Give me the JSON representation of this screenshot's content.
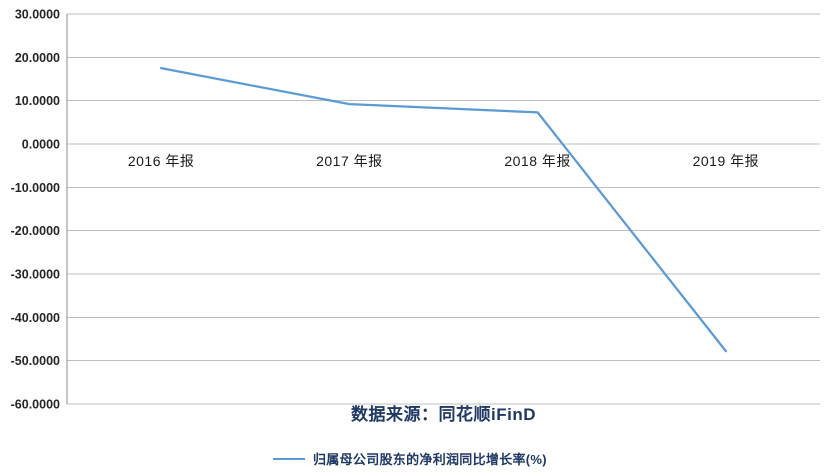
{
  "chart_data": {
    "type": "line",
    "title": "",
    "xlabel": "",
    "ylabel": "",
    "categories": [
      "2016 年报",
      "2017 年报",
      "2018 年报",
      "2019 年报"
    ],
    "series": [
      {
        "name": "归属母公司股东的净利润同比增长率(%)",
        "values": [
          17.5,
          9.2,
          7.3,
          -47.8
        ]
      }
    ],
    "ylim": [
      -60,
      30
    ],
    "ytick_values": [
      30,
      20,
      10,
      0,
      -10,
      -20,
      -30,
      -40,
      -50,
      -60
    ],
    "ytick_labels": [
      "30.0000",
      "20.0000",
      "10.0000",
      "0.0000",
      "-10.0000",
      "-20.0000",
      "-30.0000",
      "-40.0000",
      "-50.0000",
      "-60.0000"
    ],
    "grid": true,
    "legend_position": "bottom",
    "source_note": "数据来源：同花顺iFinD"
  },
  "footer": {
    "source_text": "数据来源：同花顺iFinD"
  },
  "legend": {
    "series_label": "归属母公司股东的净利润同比增长率(%)"
  },
  "colors": {
    "series_line": "#5B9BD5",
    "gridline": "#BFBFBF",
    "axis_line": "#8C8C8C",
    "tick_label": "#262626",
    "category_label": "#1A1A1A",
    "caption_text": "#1F3864",
    "background": "#FFFFFF"
  }
}
